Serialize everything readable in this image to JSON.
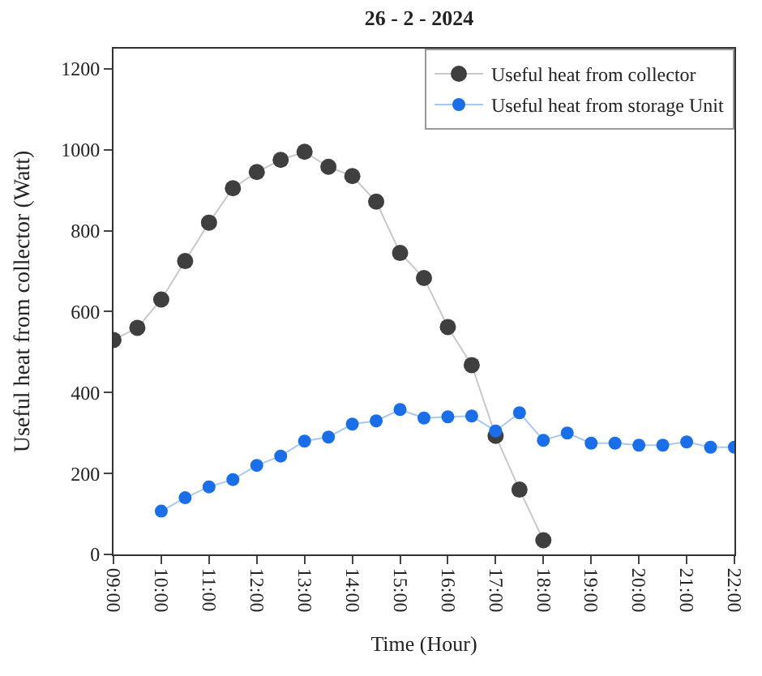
{
  "chart_data": {
    "type": "line",
    "title": "26 - 2 - 2024",
    "xlabel": "Time (Hour)",
    "ylabel": "Useful heat from collector (Watt)",
    "xlim": [
      9,
      22
    ],
    "xticks": [
      {
        "value": 9,
        "label": "09:00"
      },
      {
        "value": 10,
        "label": "10:00"
      },
      {
        "value": 11,
        "label": "11:00"
      },
      {
        "value": 12,
        "label": "12:00"
      },
      {
        "value": 13,
        "label": "13:00"
      },
      {
        "value": 14,
        "label": "14:00"
      },
      {
        "value": 15,
        "label": "15:00"
      },
      {
        "value": 16,
        "label": "16:00"
      },
      {
        "value": 17,
        "label": "17:00"
      },
      {
        "value": 18,
        "label": "18:00"
      },
      {
        "value": 19,
        "label": "19:00"
      },
      {
        "value": 20,
        "label": "20:00"
      },
      {
        "value": 21,
        "label": "21:00"
      },
      {
        "value": 22,
        "label": "22:00"
      }
    ],
    "ylim": [
      0,
      1250
    ],
    "yticks": [
      0,
      200,
      400,
      600,
      800,
      1000,
      1200
    ],
    "legend": "top right",
    "marker": "circle",
    "line_style": "solid",
    "series": [
      {
        "name": "Useful heat from collector",
        "color": "#3f3f3f",
        "x": [
          9,
          9.5,
          10,
          10.5,
          11,
          11.5,
          12,
          12.5,
          13,
          13.5,
          14,
          14.5,
          15,
          15.5,
          16,
          16.5,
          17,
          17.5,
          18
        ],
        "values": [
          530,
          560,
          630,
          725,
          820,
          905,
          945,
          975,
          995,
          958,
          935,
          872,
          745,
          683,
          562,
          468,
          293,
          160,
          35
        ]
      },
      {
        "name": "Useful heat from storage Unit",
        "color": "#1a6fe8",
        "x": [
          10,
          10.5,
          11,
          11.5,
          12,
          12.5,
          13,
          13.5,
          14,
          14.5,
          15,
          15.5,
          16,
          16.5,
          17,
          17.5,
          18,
          18.5,
          19,
          19.5,
          20,
          20.5,
          21,
          21.5,
          22
        ],
        "values": [
          107,
          140,
          167,
          185,
          220,
          243,
          280,
          290,
          322,
          330,
          358,
          337,
          340,
          342,
          305,
          350,
          282,
          300,
          275,
          275,
          270,
          270,
          278,
          265,
          265
        ]
      }
    ]
  }
}
